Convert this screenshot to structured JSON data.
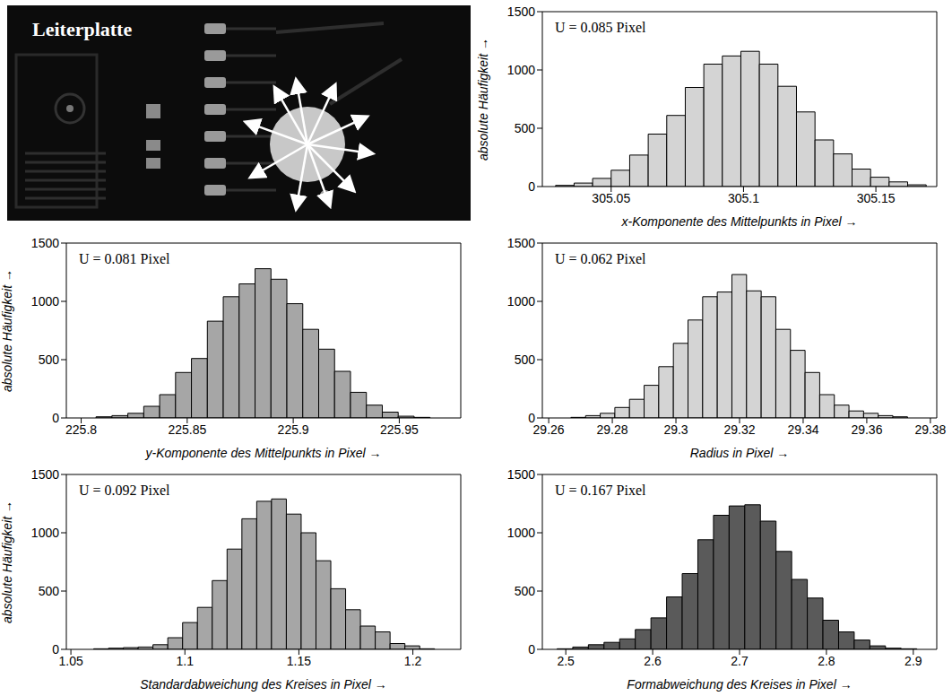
{
  "image": {
    "title": "Leiterplatte"
  },
  "chart_data": [
    {
      "type": "histogram",
      "annotation": "U = 0.085 Pixel",
      "xlabel": "x-Komponente des Mittelpunkts in Pixel →",
      "ylabel": "absolute Häufigkeit →",
      "color": "#d4d4d4",
      "bins": [
        305.029,
        305.036,
        305.043,
        305.05,
        305.057,
        305.064,
        305.071,
        305.078,
        305.085,
        305.092,
        305.099,
        305.106,
        305.113,
        305.12,
        305.127,
        305.134,
        305.141,
        305.148,
        305.155,
        305.162,
        305.169
      ],
      "values": [
        10,
        30,
        70,
        140,
        270,
        450,
        610,
        850,
        1050,
        1120,
        1160,
        1050,
        860,
        640,
        400,
        280,
        150,
        80,
        40,
        15
      ],
      "xlim": [
        305.024,
        305.173
      ],
      "xticks": [
        305.05,
        305.1,
        305.15
      ],
      "ylim": [
        0,
        1500
      ],
      "yticks": [
        0,
        500,
        1000,
        1500
      ]
    },
    {
      "type": "histogram",
      "annotation": "U = 0.081 Pixel",
      "xlabel": "y-Komponente des Mittelpunkts in Pixel →",
      "ylabel": "absolute Häufigkeit →",
      "color": "#a6a6a6",
      "bins": [
        225.807,
        225.8145,
        225.822,
        225.8295,
        225.837,
        225.8445,
        225.852,
        225.8595,
        225.867,
        225.8745,
        225.882,
        225.8895,
        225.897,
        225.9045,
        225.912,
        225.9195,
        225.927,
        225.9345,
        225.942,
        225.9495,
        225.957,
        225.9645
      ],
      "values": [
        10,
        20,
        40,
        100,
        200,
        390,
        510,
        830,
        1040,
        1150,
        1280,
        1190,
        980,
        760,
        590,
        400,
        220,
        110,
        50,
        15,
        5
      ],
      "xlim": [
        225.793,
        225.979
      ],
      "xticks": [
        225.8,
        225.85,
        225.9,
        225.95
      ],
      "ylim": [
        0,
        1500
      ],
      "yticks": [
        0,
        500,
        1000,
        1500
      ]
    },
    {
      "type": "histogram",
      "annotation": "U = 0.062 Pixel",
      "xlabel": "Radius in Pixel →",
      "color": "#d4d4d4",
      "bins": [
        29.267,
        29.2716,
        29.2762,
        29.2808,
        29.2854,
        29.29,
        29.2946,
        29.2992,
        29.3038,
        29.3084,
        29.313,
        29.3176,
        29.3222,
        29.3268,
        29.3314,
        29.336,
        29.3406,
        29.3452,
        29.3498,
        29.3544,
        29.359,
        29.3636,
        29.3682,
        29.3728
      ],
      "values": [
        5,
        20,
        40,
        90,
        160,
        280,
        440,
        640,
        840,
        1040,
        1080,
        1230,
        1090,
        1040,
        760,
        580,
        390,
        200,
        110,
        60,
        40,
        20,
        10
      ],
      "xlim": [
        29.258,
        29.382
      ],
      "xticks": [
        29.26,
        29.28,
        29.3,
        29.32,
        29.34,
        29.36,
        29.38
      ],
      "ylim": [
        0,
        1500
      ],
      "yticks": [
        0,
        500,
        1000,
        1500
      ]
    },
    {
      "type": "histogram",
      "annotation": "U = 0.092 Pixel",
      "xlabel": "Standardabweichung des Kreises in Pixel →",
      "ylabel": "absolute Häufigkeit →",
      "color": "#a6a6a6",
      "bins": [
        1.06,
        1.0665,
        1.073,
        1.0795,
        1.086,
        1.0925,
        1.099,
        1.1055,
        1.112,
        1.1185,
        1.125,
        1.1315,
        1.138,
        1.1445,
        1.151,
        1.1575,
        1.164,
        1.1705,
        1.177,
        1.1835,
        1.19,
        1.1965,
        1.203,
        1.2095
      ],
      "values": [
        5,
        10,
        15,
        20,
        40,
        100,
        230,
        360,
        590,
        860,
        1120,
        1270,
        1290,
        1160,
        1000,
        760,
        520,
        340,
        200,
        150,
        50,
        30,
        5
      ],
      "xlim": [
        1.048,
        1.221
      ],
      "xticks": [
        1.05,
        1.1,
        1.15,
        1.2
      ],
      "ylim": [
        0,
        1500
      ],
      "yticks": [
        0,
        500,
        1000,
        1500
      ]
    },
    {
      "type": "histogram",
      "annotation": "U = 0.167 Pixel",
      "xlabel": "Formabweichung des Kreises in Pixel →",
      "color": "#5a5a5a",
      "bins": [
        2.49,
        2.508,
        2.526,
        2.544,
        2.562,
        2.58,
        2.598,
        2.616,
        2.634,
        2.652,
        2.67,
        2.688,
        2.706,
        2.724,
        2.742,
        2.76,
        2.778,
        2.796,
        2.814,
        2.832,
        2.85,
        2.868,
        2.886,
        2.904
      ],
      "values": [
        5,
        20,
        40,
        60,
        90,
        170,
        270,
        450,
        650,
        940,
        1150,
        1230,
        1240,
        1100,
        840,
        600,
        440,
        250,
        150,
        80,
        30,
        10,
        5
      ],
      "xlim": [
        2.473,
        2.927
      ],
      "xticks": [
        2.5,
        2.6,
        2.7,
        2.8,
        2.9
      ],
      "ylim": [
        0,
        1500
      ],
      "yticks": [
        0,
        500,
        1000,
        1500
      ]
    }
  ]
}
